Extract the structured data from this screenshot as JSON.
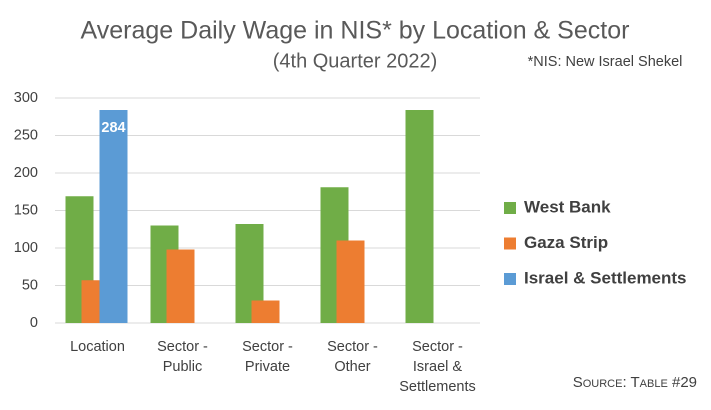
{
  "chart_data": {
    "type": "bar",
    "title": "Average Daily Wage in NIS* by Location & Sector",
    "subtitle": "(4th Quarter 2022)",
    "annotation": "*NIS: New Israel Shekel",
    "source": "Source: Table #29",
    "categories": [
      "Location",
      "Sector - Public",
      "Sector - Private",
      "Sector - Other",
      "Sector - Israel & Settlements"
    ],
    "series": [
      {
        "name": "West Bank",
        "color": "#70ad47",
        "values": [
          169,
          130,
          132,
          181,
          284
        ]
      },
      {
        "name": "Gaza Strip",
        "color": "#ed7d31",
        "values": [
          57,
          98,
          30,
          110,
          null
        ]
      },
      {
        "name": "Israel & Settlements",
        "color": "#5b9bd5",
        "values": [
          284,
          null,
          null,
          null,
          null
        ]
      }
    ],
    "data_labels": [
      {
        "series": 2,
        "index": 0
      }
    ],
    "ylim": [
      0,
      300
    ],
    "yticks": [
      0,
      50,
      100,
      150,
      200,
      250,
      300
    ],
    "grid": true,
    "legend": "right"
  }
}
